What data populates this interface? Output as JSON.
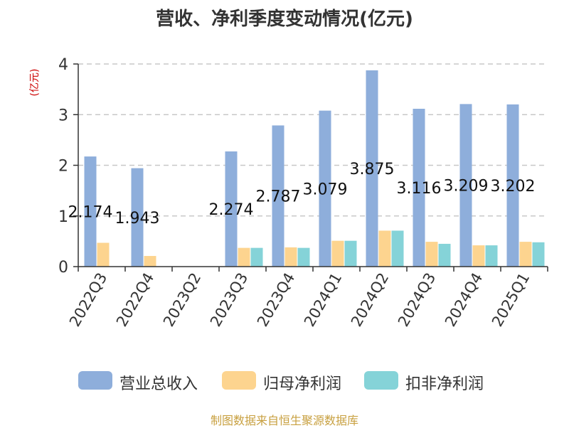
{
  "chart_data": {
    "type": "bar",
    "title": "营收、净利季度变动情况(亿元)",
    "ylabel": "(亿元)",
    "ylim": [
      0,
      4
    ],
    "yticks": [
      0,
      1,
      2,
      3,
      4
    ],
    "grid": true,
    "legend_position": "bottom",
    "categories": [
      "2022Q3",
      "2022Q4",
      "2023Q2",
      "2023Q3",
      "2023Q4",
      "2024Q1",
      "2024Q2",
      "2024Q3",
      "2024Q4",
      "2025Q1"
    ],
    "series": [
      {
        "name": "营业总收入",
        "color": "#8eaedb",
        "values": [
          2.174,
          1.943,
          null,
          2.274,
          2.787,
          3.079,
          3.875,
          3.116,
          3.209,
          3.202
        ],
        "labels": [
          "2.174",
          "1.943",
          "",
          "2.274",
          "2.787",
          "3.079",
          "3.875",
          "3.116",
          "3.209",
          "3.202"
        ]
      },
      {
        "name": "归母净利润",
        "color": "#fdd48f",
        "values": [
          0.47,
          0.21,
          null,
          0.37,
          0.38,
          0.51,
          0.71,
          0.49,
          0.42,
          0.49
        ]
      },
      {
        "name": "扣非净利润",
        "color": "#85d3d8",
        "values": [
          null,
          null,
          null,
          0.37,
          0.37,
          0.51,
          0.71,
          0.45,
          0.42,
          0.48
        ]
      }
    ]
  },
  "source": "制图数据来自恒生聚源数据库"
}
